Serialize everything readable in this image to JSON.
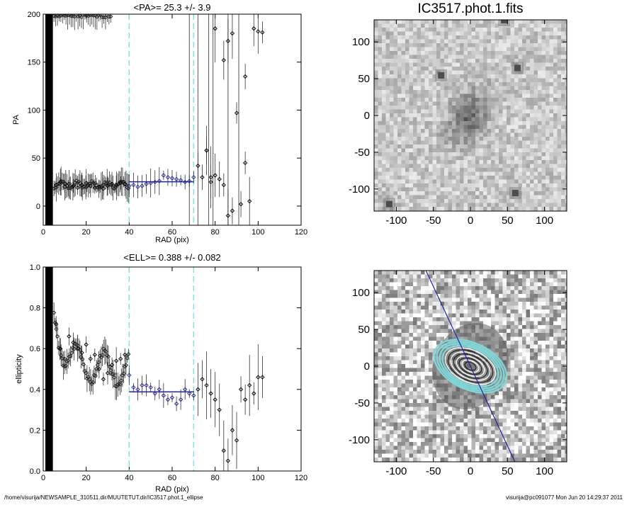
{
  "footer": {
    "path": "/home/visurija/NEWSAMPLE_310511.dir/MUUTETUT.dir/IC3517.phot.1_ellipse",
    "stamp": "visurija@pc091077  Mon Jun 20 14:29:37 2011"
  },
  "colors": {
    "blue_fit": "#2222aa",
    "cyan_guides": "#7fe5e0",
    "contour_cyan": "#7fd6d6"
  },
  "chart_data": [
    {
      "type": "scatter",
      "title": "<PA>=  25.3 +/-   3.9",
      "xlabel": "RAD (pix)",
      "ylabel": "PA",
      "xlim": [
        0,
        120
      ],
      "ylim": [
        -20,
        200
      ],
      "xticks": [
        "0",
        "20",
        "40",
        "60",
        "80",
        "100",
        "120"
      ],
      "yticks": [
        "0",
        "50",
        "100",
        "150",
        "200"
      ],
      "guide_lines_x": [
        40,
        70
      ],
      "fit": {
        "x": [
          40,
          70
        ],
        "y": [
          25.3,
          25.3
        ]
      },
      "points": {
        "x": [
          6,
          8,
          10,
          12,
          14,
          16,
          18,
          20,
          22,
          24,
          26,
          28,
          30,
          32,
          34,
          36,
          38,
          40,
          42,
          44,
          46,
          48,
          50,
          52,
          54,
          56,
          58,
          60,
          62,
          64,
          66,
          68,
          70,
          72,
          74,
          76,
          78,
          80,
          82,
          84,
          86,
          88,
          90,
          92,
          94,
          96,
          98,
          100,
          102
        ],
        "y": [
          22,
          25,
          20,
          23,
          21,
          19,
          22,
          24,
          21,
          19,
          20,
          18,
          21,
          23,
          22,
          24,
          23,
          21,
          22,
          20,
          21,
          23,
          24,
          25,
          26,
          32,
          30,
          29,
          28,
          27,
          25,
          26,
          30,
          42,
          30,
          58,
          25,
          32,
          28,
          22,
          -10,
          -5,
          97,
          2,
          45,
          5,
          185,
          182,
          181
        ]
      },
      "unreliable_points": {
        "x": [
          76,
          78,
          80,
          84,
          86,
          88,
          94
        ],
        "y": [
          58,
          30,
          185,
          152,
          172,
          180,
          135
        ]
      },
      "vertical_lines_x": [
        68,
        72,
        77,
        79,
        86,
        91
      ]
    },
    {
      "type": "scatter",
      "title": "<ELL>= 0.388 +/-  0.082",
      "xlabel": "RAD (pix)",
      "ylabel": "ellipticity",
      "xlim": [
        0,
        120
      ],
      "ylim": [
        0,
        1.0
      ],
      "xticks": [
        "0",
        "20",
        "40",
        "60",
        "80",
        "100",
        "120"
      ],
      "yticks": [
        "0.0",
        "0.2",
        "0.4",
        "0.6",
        "0.8",
        "1.0"
      ],
      "guide_lines_x": [
        40,
        70
      ],
      "fit": {
        "x": [
          40,
          70
        ],
        "y": [
          0.388,
          0.388
        ]
      },
      "points": {
        "x": [
          6,
          8,
          10,
          12,
          14,
          16,
          18,
          20,
          22,
          24,
          26,
          28,
          30,
          32,
          34,
          36,
          38,
          40,
          42,
          44,
          46,
          48,
          50,
          52,
          54,
          56,
          58,
          60,
          62,
          64,
          66,
          68,
          70,
          72,
          74,
          76,
          78,
          80,
          82,
          84,
          86,
          88,
          90,
          92,
          94,
          96,
          98,
          100,
          102
        ],
        "y": [
          0.72,
          0.6,
          0.55,
          0.66,
          0.63,
          0.6,
          0.58,
          0.62,
          0.55,
          0.57,
          0.5,
          0.45,
          0.48,
          0.52,
          0.54,
          0.55,
          0.57,
          0.47,
          0.41,
          0.4,
          0.42,
          0.42,
          0.41,
          0.38,
          0.4,
          0.37,
          0.35,
          0.36,
          0.33,
          0.35,
          0.4,
          0.38,
          0.37,
          0.4,
          0.45,
          0.42,
          0.38,
          0.35,
          0.3,
          0.1,
          0.05,
          0.2,
          0.15,
          0.4,
          0.35,
          0.42,
          0.38,
          0.46,
          0.46
        ]
      }
    },
    {
      "type": "heatmap",
      "title": "IC3517.phot.1.fits",
      "xlim": [
        -130,
        130
      ],
      "ylim": [
        -130,
        130
      ],
      "xticks": [
        "-100",
        "-50",
        "0",
        "50",
        "100"
      ],
      "yticks": [
        "-100",
        "-50",
        "0",
        "50",
        "100"
      ],
      "galaxy": {
        "center": [
          -5,
          0
        ],
        "semi_major": 42,
        "semi_minor": 26,
        "pa": 25
      },
      "bright_sources": [
        [
          63,
          65
        ],
        [
          -40,
          55
        ],
        [
          45,
          130
        ],
        [
          60,
          -105
        ],
        [
          -110,
          -120
        ]
      ]
    },
    {
      "type": "heatmap",
      "title": "",
      "xlim": [
        -130,
        130
      ],
      "ylim": [
        -130,
        130
      ],
      "xticks": [
        "-100",
        "-50",
        "0",
        "50",
        "100"
      ],
      "yticks": [
        "-100",
        "-50",
        "0",
        "50",
        "100"
      ],
      "contours": {
        "center": [
          0,
          0
        ],
        "pa": 25,
        "radii": [
          8,
          12,
          16,
          20,
          24,
          28,
          32,
          36,
          40,
          44,
          48,
          52
        ]
      },
      "major_axis_line": {
        "from": [
          -60,
          130
        ],
        "to": [
          60,
          -130
        ]
      }
    }
  ]
}
